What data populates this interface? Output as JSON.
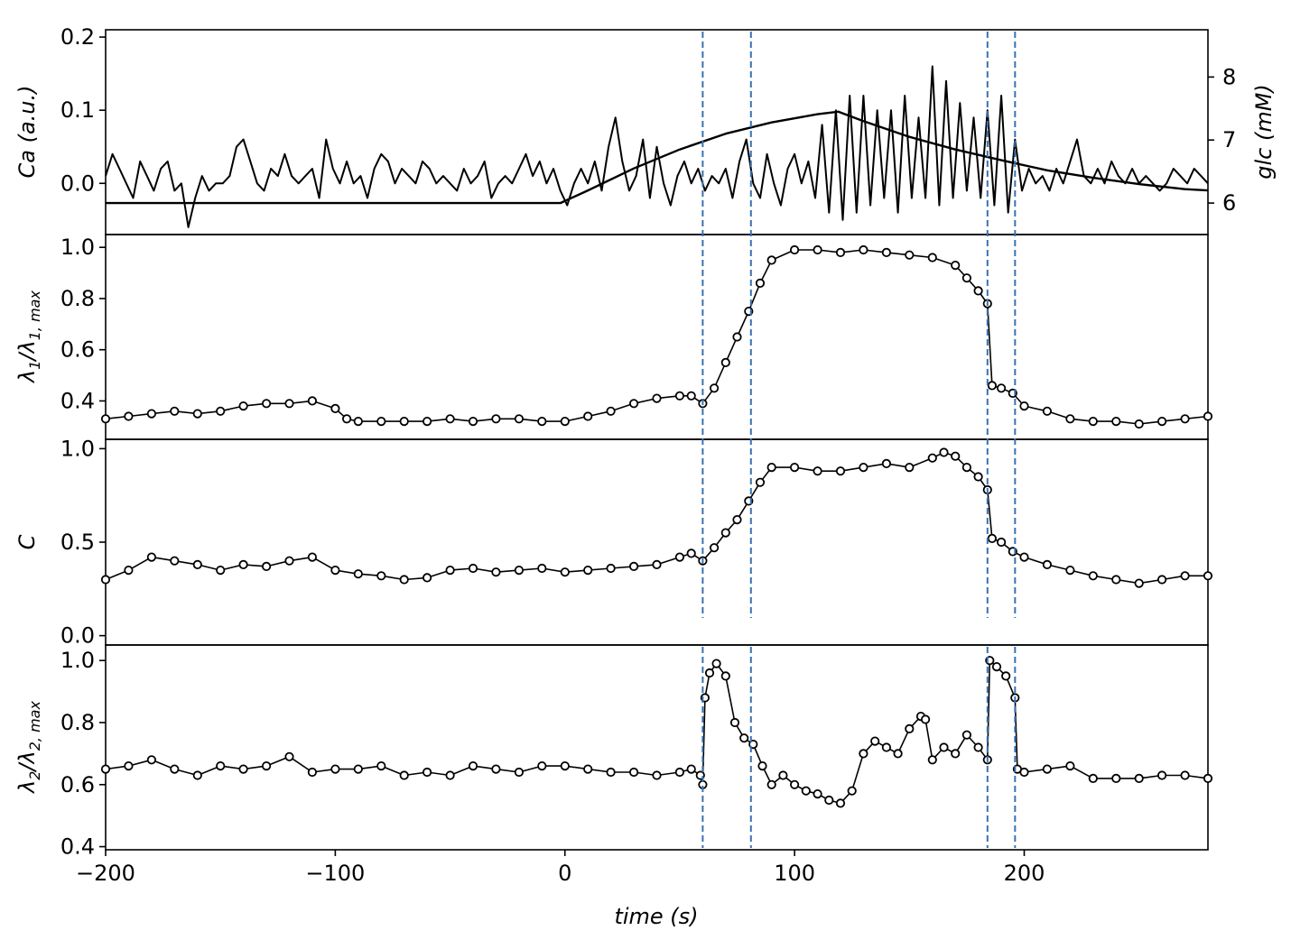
{
  "chart_data": [
    {
      "type": "line",
      "panel": "ca",
      "ylabel": "Ca (a.u.)",
      "ylabel_secondary": "glc (mM)",
      "xlim": [
        -200,
        280
      ],
      "ylim": [
        -0.07,
        0.21
      ],
      "yticks": [
        0.0,
        0.1,
        0.2
      ],
      "ytick_labels": [
        "0.0",
        "0.1",
        "0.2"
      ],
      "ylim_secondary": [
        5.5,
        8.75
      ],
      "yticks_secondary": [
        6,
        7,
        8
      ],
      "ytick_labels_secondary": [
        "6",
        "7",
        "8"
      ],
      "series": [
        {
          "axis": "primary",
          "color": "#000000",
          "x": [
            -200,
            -197,
            -194,
            -191,
            -188,
            -185,
            -182,
            -179,
            -176,
            -173,
            -170,
            -167,
            -164,
            -161,
            -158,
            -155,
            -152,
            -149,
            -146,
            -143,
            -140,
            -137,
            -134,
            -131,
            -128,
            -125,
            -122,
            -119,
            -116,
            -113,
            -110,
            -107,
            -104,
            -101,
            -98,
            -95,
            -92,
            -89,
            -86,
            -83,
            -80,
            -77,
            -74,
            -71,
            -68,
            -65,
            -62,
            -59,
            -56,
            -53,
            -50,
            -47,
            -44,
            -41,
            -38,
            -35,
            -32,
            -29,
            -26,
            -23,
            -20,
            -17,
            -14,
            -11,
            -8,
            -5,
            -2,
            1,
            4,
            7,
            10,
            13,
            16,
            19,
            22,
            25,
            28,
            31,
            34,
            37,
            40,
            43,
            46,
            49,
            52,
            55,
            58,
            61,
            64,
            67,
            70,
            73,
            76,
            79,
            82,
            85,
            88,
            91,
            94,
            97,
            100,
            103,
            106,
            109,
            112,
            115,
            118,
            121,
            124,
            127,
            130,
            133,
            136,
            139,
            142,
            145,
            148,
            151,
            154,
            157,
            160,
            163,
            166,
            169,
            172,
            175,
            178,
            181,
            184,
            187,
            190,
            193,
            196,
            199,
            202,
            205,
            208,
            211,
            214,
            217,
            220,
            223,
            226,
            229,
            232,
            235,
            238,
            241,
            244,
            247,
            250,
            253,
            256,
            259,
            262,
            265,
            268,
            271,
            274,
            277,
            280
          ],
          "values": [
            0.01,
            0.04,
            0.02,
            0.0,
            -0.02,
            0.03,
            0.01,
            -0.01,
            0.02,
            0.03,
            -0.01,
            0.0,
            -0.06,
            -0.02,
            0.01,
            -0.01,
            0.0,
            0.0,
            0.01,
            0.05,
            0.06,
            0.03,
            0.0,
            -0.01,
            0.02,
            0.01,
            0.04,
            0.01,
            0.0,
            0.01,
            0.02,
            -0.02,
            0.06,
            0.02,
            0.0,
            0.03,
            0.0,
            0.01,
            -0.02,
            0.02,
            0.04,
            0.03,
            0.0,
            0.02,
            0.01,
            0.0,
            0.03,
            0.02,
            0.0,
            0.01,
            0.0,
            -0.01,
            0.02,
            0.0,
            0.01,
            0.03,
            -0.02,
            0.0,
            0.01,
            0.0,
            0.02,
            0.04,
            0.01,
            0.03,
            0.0,
            0.02,
            -0.01,
            -0.03,
            0.0,
            0.02,
            0.0,
            0.03,
            -0.01,
            0.05,
            0.09,
            0.03,
            -0.01,
            0.01,
            0.06,
            -0.02,
            0.05,
            0.0,
            -0.03,
            0.01,
            0.03,
            0.0,
            0.02,
            -0.01,
            0.01,
            0.0,
            0.02,
            -0.02,
            0.03,
            0.06,
            0.0,
            -0.02,
            0.04,
            0.0,
            -0.03,
            0.02,
            0.04,
            0.0,
            0.03,
            -0.02,
            0.08,
            -0.04,
            0.1,
            -0.05,
            0.12,
            -0.04,
            0.12,
            -0.03,
            0.1,
            -0.02,
            0.1,
            -0.04,
            0.12,
            -0.02,
            0.09,
            -0.02,
            0.16,
            -0.03,
            0.14,
            -0.02,
            0.11,
            -0.01,
            0.09,
            -0.02,
            0.1,
            -0.03,
            0.12,
            -0.04,
            0.06,
            -0.01,
            0.02,
            0.0,
            0.01,
            -0.01,
            0.02,
            0.0,
            0.03,
            0.06,
            0.01,
            0.0,
            0.02,
            0.0,
            0.03,
            0.01,
            0.0,
            0.02,
            0.0,
            0.01,
            0.0,
            -0.01,
            0.0,
            0.02,
            0.01,
            0.0,
            0.02,
            0.01,
            0.0
          ]
        },
        {
          "axis": "secondary",
          "color": "#000000",
          "x": [
            -200,
            -130,
            -60,
            -2,
            10,
            30,
            50,
            70,
            90,
            110,
            119,
            130,
            150,
            170,
            190,
            210,
            230,
            250,
            270,
            280
          ],
          "values": [
            6.0,
            6.0,
            6.0,
            6.0,
            6.2,
            6.55,
            6.85,
            7.1,
            7.28,
            7.41,
            7.45,
            7.3,
            7.05,
            6.85,
            6.68,
            6.52,
            6.4,
            6.3,
            6.22,
            6.2
          ]
        }
      ]
    },
    {
      "type": "line",
      "panel": "lambda1",
      "ylabel": "λ1/λ1,max",
      "ylabel_main": "λ",
      "ylabel_sub1": "1",
      "ylabel_mid": "/λ",
      "ylabel_sub2": "1, max",
      "xlim": [
        -200,
        280
      ],
      "ylim": [
        0.25,
        1.05
      ],
      "yticks": [
        0.4,
        0.6,
        0.8,
        1.0
      ],
      "ytick_labels": [
        "0.4",
        "0.6",
        "0.8",
        "1.0"
      ],
      "markers": "open-circle",
      "x": [
        -200,
        -190,
        -180,
        -170,
        -160,
        -150,
        -140,
        -130,
        -120,
        -110,
        -100,
        -95,
        -90,
        -80,
        -70,
        -60,
        -50,
        -40,
        -30,
        -20,
        -10,
        0,
        10,
        20,
        30,
        40,
        50,
        55,
        60,
        65,
        70,
        75,
        80,
        85,
        90,
        100,
        110,
        120,
        130,
        140,
        150,
        160,
        170,
        175,
        180,
        184,
        186,
        190,
        195,
        200,
        210,
        220,
        230,
        240,
        250,
        260,
        270,
        280
      ],
      "values": [
        0.33,
        0.34,
        0.35,
        0.36,
        0.35,
        0.36,
        0.38,
        0.39,
        0.39,
        0.4,
        0.37,
        0.33,
        0.32,
        0.32,
        0.32,
        0.32,
        0.33,
        0.32,
        0.33,
        0.33,
        0.32,
        0.32,
        0.34,
        0.36,
        0.39,
        0.41,
        0.42,
        0.42,
        0.39,
        0.45,
        0.55,
        0.65,
        0.75,
        0.86,
        0.95,
        0.99,
        0.99,
        0.98,
        0.99,
        0.98,
        0.97,
        0.96,
        0.93,
        0.88,
        0.83,
        0.78,
        0.46,
        0.45,
        0.43,
        0.38,
        0.36,
        0.33,
        0.32,
        0.32,
        0.31,
        0.32,
        0.33,
        0.34
      ]
    },
    {
      "type": "line",
      "panel": "C",
      "ylabel": "C",
      "xlim": [
        -200,
        280
      ],
      "ylim": [
        -0.05,
        1.05
      ],
      "yticks": [
        0.0,
        0.5,
        1.0
      ],
      "ytick_labels": [
        "0.0",
        "0.5",
        "1.0"
      ],
      "markers": "open-circle",
      "x": [
        -200,
        -190,
        -180,
        -170,
        -160,
        -150,
        -140,
        -130,
        -120,
        -110,
        -100,
        -90,
        -80,
        -70,
        -60,
        -50,
        -40,
        -30,
        -20,
        -10,
        0,
        10,
        20,
        30,
        40,
        50,
        55,
        60,
        65,
        70,
        75,
        80,
        85,
        90,
        100,
        110,
        120,
        130,
        140,
        150,
        160,
        165,
        170,
        175,
        180,
        184,
        186,
        190,
        195,
        200,
        210,
        220,
        230,
        240,
        250,
        260,
        270,
        280
      ],
      "values": [
        0.3,
        0.35,
        0.42,
        0.4,
        0.38,
        0.35,
        0.38,
        0.37,
        0.4,
        0.42,
        0.35,
        0.33,
        0.32,
        0.3,
        0.31,
        0.35,
        0.36,
        0.34,
        0.35,
        0.36,
        0.34,
        0.35,
        0.36,
        0.37,
        0.38,
        0.42,
        0.44,
        0.4,
        0.47,
        0.55,
        0.62,
        0.72,
        0.82,
        0.9,
        0.9,
        0.88,
        0.88,
        0.9,
        0.92,
        0.9,
        0.95,
        0.98,
        0.96,
        0.9,
        0.85,
        0.78,
        0.52,
        0.5,
        0.45,
        0.42,
        0.38,
        0.35,
        0.32,
        0.3,
        0.28,
        0.3,
        0.32,
        0.32
      ]
    },
    {
      "type": "line",
      "panel": "lambda2",
      "ylabel": "λ2/λ2,max",
      "ylabel_main": "λ",
      "ylabel_sub1": "2",
      "ylabel_mid": "/λ",
      "ylabel_sub2": "2, max",
      "xlabel": "time (s)",
      "xlim": [
        -200,
        280
      ],
      "ylim": [
        0.39,
        1.05
      ],
      "yticks": [
        0.4,
        0.6,
        0.8,
        1.0
      ],
      "ytick_labels": [
        "0.4",
        "0.6",
        "0.8",
        "1.0"
      ],
      "xticks": [
        -200,
        -100,
        0,
        100,
        200
      ],
      "xtick_labels": [
        "−200",
        "−100",
        "0",
        "100",
        "200"
      ],
      "markers": "open-circle",
      "x": [
        -200,
        -190,
        -180,
        -170,
        -160,
        -150,
        -140,
        -130,
        -120,
        -110,
        -100,
        -90,
        -80,
        -70,
        -60,
        -50,
        -40,
        -30,
        -20,
        -10,
        0,
        10,
        20,
        30,
        40,
        50,
        55,
        59,
        60,
        61,
        63,
        66,
        70,
        74,
        78,
        82,
        86,
        90,
        95,
        100,
        105,
        110,
        115,
        120,
        125,
        130,
        135,
        140,
        145,
        150,
        155,
        157,
        160,
        165,
        170,
        175,
        180,
        184,
        185,
        188,
        192,
        196,
        197,
        200,
        210,
        220,
        230,
        240,
        250,
        260,
        270,
        280
      ],
      "values": [
        0.65,
        0.66,
        0.68,
        0.65,
        0.63,
        0.66,
        0.65,
        0.66,
        0.69,
        0.64,
        0.65,
        0.65,
        0.66,
        0.63,
        0.64,
        0.63,
        0.66,
        0.65,
        0.64,
        0.66,
        0.66,
        0.65,
        0.64,
        0.64,
        0.63,
        0.64,
        0.65,
        0.63,
        0.6,
        0.88,
        0.96,
        0.99,
        0.95,
        0.8,
        0.75,
        0.73,
        0.66,
        0.6,
        0.63,
        0.6,
        0.58,
        0.57,
        0.55,
        0.54,
        0.58,
        0.7,
        0.74,
        0.72,
        0.7,
        0.78,
        0.82,
        0.81,
        0.68,
        0.72,
        0.7,
        0.76,
        0.72,
        0.68,
        1.0,
        0.98,
        0.95,
        0.88,
        0.65,
        0.64,
        0.65,
        0.66,
        0.62,
        0.62,
        0.62,
        0.63,
        0.63,
        0.62
      ]
    }
  ],
  "vertical_lines": {
    "x": [
      60,
      81,
      184,
      196
    ],
    "color": "#3a72b0",
    "style": "dashed"
  }
}
